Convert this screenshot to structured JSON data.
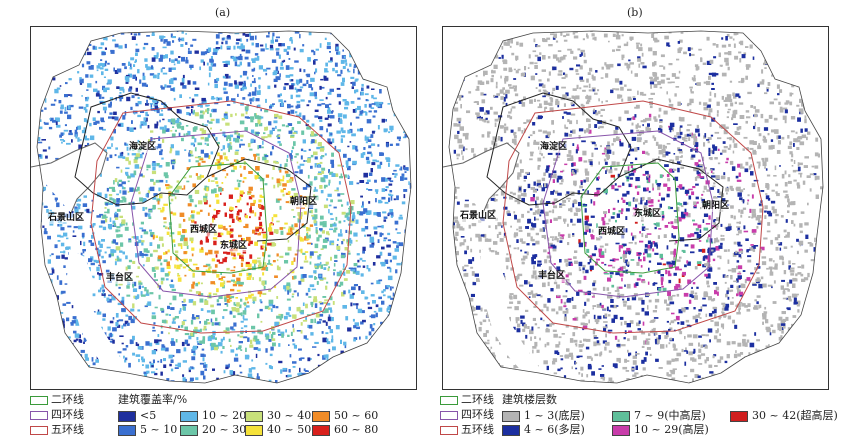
{
  "panels": {
    "a": {
      "label": "(a)"
    },
    "b": {
      "label": "(b)"
    }
  },
  "districts": {
    "haidian": "海淀区",
    "chaoyang": "朝阳区",
    "shijingshan": "石景山区",
    "xicheng": "西城区",
    "dongcheng": "东城区",
    "fengtai": "丰台区"
  },
  "rings": {
    "second": {
      "label": "二环线",
      "color": "#3a9a3a"
    },
    "fourth": {
      "label": "四环线",
      "color": "#8855aa"
    },
    "fifth": {
      "label": "五环线",
      "color": "#c04848"
    }
  },
  "legend_a": {
    "title": "建筑覆盖率/%",
    "classes": [
      {
        "label": "<5",
        "color": "#1f2f9e"
      },
      {
        "label": "5 ~ 10",
        "color": "#3a6fd0"
      },
      {
        "label": "10 ~ 20",
        "color": "#5fb7e8"
      },
      {
        "label": "20 ~ 30",
        "color": "#6cc6a8"
      },
      {
        "label": "30 ~ 40",
        "color": "#c8e07a"
      },
      {
        "label": "40 ~ 50",
        "color": "#f5e23a"
      },
      {
        "label": "50 ~ 60",
        "color": "#f08c28"
      },
      {
        "label": "60 ~ 80",
        "color": "#d8201c"
      }
    ]
  },
  "legend_b": {
    "title": "建筑楼层数",
    "classes": [
      {
        "label": "1 ~ 3(底层)",
        "color": "#b4b4b4"
      },
      {
        "label": "4 ~ 6(多层)",
        "color": "#1c2fa0"
      },
      {
        "label": "7 ~ 9(中高层)",
        "color": "#5fbf9a"
      },
      {
        "label": "10 ~ 29(高层)",
        "color": "#c83caa"
      },
      {
        "label": "30 ~ 42(超高层)",
        "color": "#d01e1e"
      }
    ]
  }
}
